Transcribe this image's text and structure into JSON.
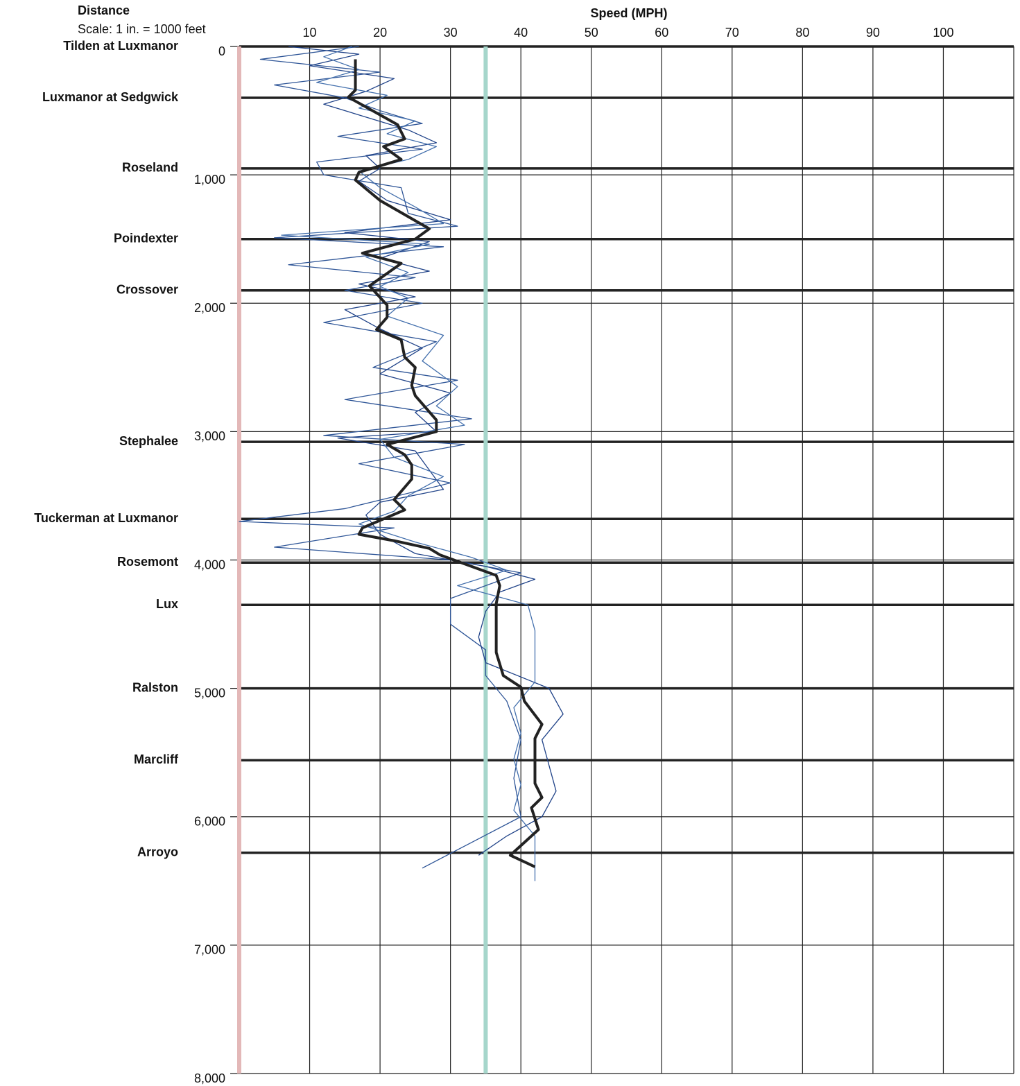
{
  "chart_data": {
    "type": "line",
    "title": "Speed (MPH)",
    "y_axis_title": "Distance",
    "y_axis_subtitle": "Scale: 1 in. = 1000 feet",
    "xlim": [
      0,
      110
    ],
    "xticks": [
      10,
      20,
      30,
      40,
      50,
      60,
      70,
      80,
      90,
      100
    ],
    "ylim": [
      0,
      8000
    ],
    "yticks": [
      0,
      {
        "value": 1000,
        "label": "1,000"
      },
      {
        "value": 2000,
        "label": "2,000"
      },
      {
        "value": 3000,
        "label": "3,000"
      },
      {
        "value": 4000,
        "label": "4,000"
      },
      {
        "value": 5000,
        "label": "5,000"
      },
      {
        "value": 6000,
        "label": "6,000"
      },
      {
        "value": 7000,
        "label": "7,000"
      },
      {
        "value": 8000,
        "label": "8,000"
      }
    ],
    "y_inverted": true,
    "grid": true,
    "axis_color": "#e3b8b8",
    "reference_lines": [
      {
        "value": 35,
        "color": "#a6d6cb"
      }
    ],
    "cross_streets": [
      {
        "name": "Tilden at Luxmanor",
        "distance": 0
      },
      {
        "name": "Luxmanor at Sedgwick",
        "distance": 400
      },
      {
        "name": "Roseland",
        "distance": 950
      },
      {
        "name": "Poindexter",
        "distance": 1500
      },
      {
        "name": "Crossover",
        "distance": 1900
      },
      {
        "name": "Stephalee",
        "distance": 3080
      },
      {
        "name": "Tuckerman at Luxmanor",
        "distance": 3680
      },
      {
        "name": "Rosemont",
        "distance": 4020
      },
      {
        "name": "Lux",
        "distance": 4350
      },
      {
        "name": "Ralston",
        "distance": 5000
      },
      {
        "name": "Marcliff",
        "distance": 5560
      },
      {
        "name": "Arroyo",
        "distance": 6280
      }
    ],
    "series": [
      {
        "color": "#2e5597",
        "width": 1.3,
        "y": [
          0,
          100,
          200,
          300,
          400,
          500,
          600,
          700,
          800,
          900,
          1000,
          1100,
          1300,
          1400,
          1490,
          1560,
          1700,
          1800,
          1900,
          2000,
          2150,
          2300,
          2500,
          2600,
          2750,
          2900,
          3030,
          3100,
          3250,
          3400,
          3600,
          3700,
          3750,
          3900,
          4000,
          4100,
          4300,
          4500,
          4700,
          4900,
          5100,
          5400,
          5700,
          6000,
          6200,
          6400
        ],
        "values": [
          17,
          3,
          20,
          5,
          15,
          20,
          26,
          14,
          26,
          11,
          12,
          23,
          24,
          31,
          5,
          29,
          7,
          25,
          15,
          26,
          12,
          28,
          19,
          31,
          15,
          33,
          12,
          32,
          17,
          30,
          15,
          0,
          22,
          5,
          30,
          40,
          30,
          30,
          35,
          35,
          38,
          40,
          39,
          40,
          33,
          26
        ]
      },
      {
        "color": "#1f4288",
        "width": 1.3,
        "y": [
          0,
          60,
          150,
          250,
          350,
          450,
          550,
          650,
          750,
          850,
          950,
          1050,
          1200,
          1350,
          1450,
          1520,
          1650,
          1750,
          1850,
          1950,
          2050,
          2200,
          2350,
          2550,
          2700,
          2850,
          3000,
          3050,
          3150,
          3300,
          3450,
          3550,
          3650,
          3800,
          3950,
          4050,
          4150,
          4250,
          4400,
          4600,
          4800,
          5000,
          5200,
          5400,
          5600,
          5800,
          6000,
          6150,
          6300
        ],
        "values": [
          7,
          17,
          10,
          22,
          18,
          12,
          18,
          24,
          28,
          18,
          20,
          17,
          21,
          30,
          15,
          27,
          20,
          27,
          17,
          25,
          15,
          20,
          26,
          20,
          30,
          25,
          28,
          14,
          25,
          27,
          29,
          20,
          18,
          20,
          25,
          35,
          42,
          37,
          35,
          34,
          35,
          44,
          46,
          43,
          44,
          45,
          43,
          38,
          34
        ]
      },
      {
        "color": "#4470ad",
        "width": 1.3,
        "y": [
          0,
          80,
          180,
          280,
          380,
          480,
          580,
          680,
          780,
          880,
          970,
          1100,
          1250,
          1380,
          1470,
          1540,
          1640,
          1760,
          1870,
          1960,
          2100,
          2250,
          2450,
          2650,
          2800,
          2950,
          3060,
          3200,
          3350,
          3500,
          3620,
          3720,
          3860,
          3980,
          4080,
          4200,
          4350,
          4550,
          4750,
          4950,
          5150,
          5350,
          5550,
          5750,
          5950,
          6150,
          6350,
          6500
        ],
        "values": [
          16,
          12,
          17,
          11,
          21,
          17,
          25,
          21,
          28,
          24,
          17,
          20,
          25,
          29,
          6,
          27,
          18,
          24,
          20,
          24,
          21,
          29,
          26,
          31,
          28,
          32,
          20,
          22,
          29,
          24,
          22,
          17,
          25,
          33,
          38,
          31,
          41,
          42,
          42,
          42,
          39,
          40,
          39,
          40,
          39,
          42,
          42,
          42
        ]
      },
      {
        "color": "#222222",
        "width": 4,
        "y": [
          100,
          340,
          395,
          610,
          720,
          780,
          880,
          980,
          1040,
          1200,
          1420,
          1500,
          1610,
          1690,
          1865,
          2015,
          2110,
          2205,
          2285,
          2420,
          2500,
          2640,
          2720,
          2910,
          3000,
          3100,
          3180,
          3260,
          3370,
          3530,
          3610,
          3750,
          3800,
          3850,
          3910,
          3960,
          4120,
          4200,
          4340,
          4720,
          4900,
          4990,
          5100,
          5280,
          5390,
          5740,
          5850,
          5930,
          6100,
          6300,
          6390
        ],
        "values": [
          16.5,
          16.5,
          15.5,
          22.5,
          23.5,
          20.5,
          23,
          17,
          16.5,
          20,
          27,
          25,
          17.5,
          23,
          18.5,
          21,
          21,
          19.5,
          23,
          23.5,
          25,
          24.5,
          25,
          28,
          28,
          21,
          23.5,
          24.5,
          24.5,
          22,
          23.5,
          17.5,
          17,
          22,
          27,
          28.5,
          36.5,
          37,
          36.5,
          36.5,
          37.5,
          40,
          40.5,
          43,
          42,
          42,
          43,
          41.5,
          42.5,
          38.5,
          42
        ]
      }
    ]
  }
}
